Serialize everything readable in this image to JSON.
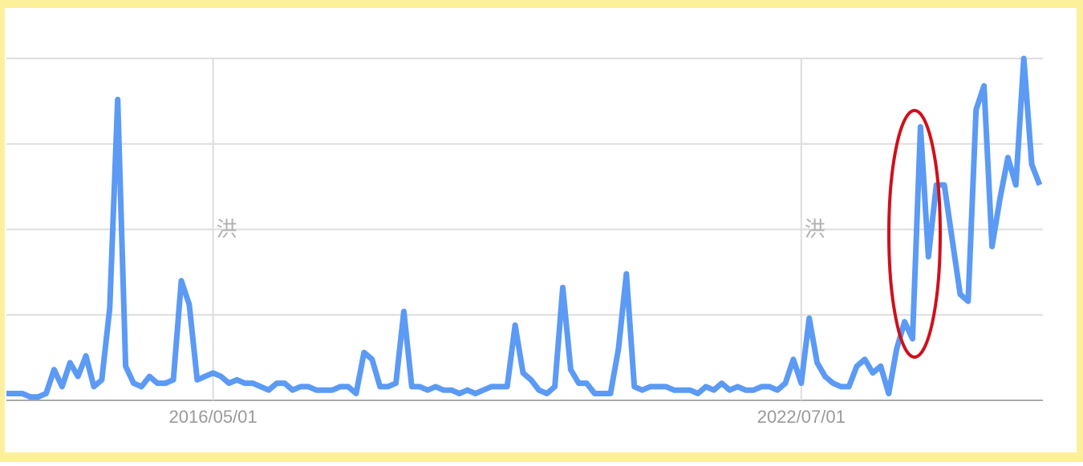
{
  "chart_data": {
    "type": "line",
    "x": [
      "2014/03/01",
      "2014/04/01",
      "2014/05/01",
      "2014/06/01",
      "2014/07/01",
      "2014/08/01",
      "2014/09/01",
      "2014/10/01",
      "2014/11/01",
      "2014/12/01",
      "2015/01/01",
      "2015/02/01",
      "2015/03/01",
      "2015/04/01",
      "2015/05/01",
      "2015/06/01",
      "2015/07/01",
      "2015/08/01",
      "2015/09/01",
      "2015/10/01",
      "2015/11/01",
      "2015/12/01",
      "2016/01/01",
      "2016/02/01",
      "2016/03/01",
      "2016/04/01",
      "2016/05/01",
      "2016/06/01",
      "2016/07/01",
      "2016/08/01",
      "2016/09/01",
      "2016/10/01",
      "2016/11/01",
      "2016/12/01",
      "2017/01/01",
      "2017/02/01",
      "2017/03/01",
      "2017/04/01",
      "2017/05/01",
      "2017/06/01",
      "2017/07/01",
      "2017/08/01",
      "2017/09/01",
      "2017/10/01",
      "2017/11/01",
      "2017/12/01",
      "2018/01/01",
      "2018/02/01",
      "2018/03/01",
      "2018/04/01",
      "2018/05/01",
      "2018/06/01",
      "2018/07/01",
      "2018/08/01",
      "2018/09/01",
      "2018/10/01",
      "2018/11/01",
      "2018/12/01",
      "2019/01/01",
      "2019/02/01",
      "2019/03/01",
      "2019/04/01",
      "2019/05/01",
      "2019/06/01",
      "2019/07/01",
      "2019/08/01",
      "2019/09/01",
      "2019/10/01",
      "2019/11/01",
      "2019/12/01",
      "2020/01/01",
      "2020/02/01",
      "2020/03/01",
      "2020/04/01",
      "2020/05/01",
      "2020/06/01",
      "2020/07/01",
      "2020/08/01",
      "2020/09/01",
      "2020/10/01",
      "2020/11/01",
      "2020/12/01",
      "2021/01/01",
      "2021/02/01",
      "2021/03/01",
      "2021/04/01",
      "2021/05/01",
      "2021/06/01",
      "2021/07/01",
      "2021/08/01",
      "2021/09/01",
      "2021/10/01",
      "2021/11/01",
      "2021/12/01",
      "2022/01/01",
      "2022/02/01",
      "2022/03/01",
      "2022/04/01",
      "2022/05/01",
      "2022/06/01",
      "2022/07/01",
      "2022/08/01",
      "2022/09/01",
      "2022/10/01",
      "2022/11/01",
      "2022/12/01",
      "2023/01/01",
      "2023/02/01",
      "2023/03/01",
      "2023/04/01",
      "2023/05/01",
      "2023/06/01",
      "2023/07/01",
      "2023/08/01",
      "2023/09/01",
      "2023/10/01",
      "2023/11/01",
      "2023/12/01",
      "2024/01/01",
      "2024/02/01",
      "2024/03/01",
      "2024/04/01",
      "2024/05/01",
      "2024/06/01",
      "2024/07/01",
      "2024/08/01",
      "2024/09/01",
      "2024/10/01",
      "2024/11/01",
      "2024/12/01",
      "2025/01/01"
    ],
    "series": [
      {
        "color": "#5b9af5",
        "values": [
          2,
          2,
          2,
          1,
          1,
          2,
          9,
          4,
          11,
          7,
          13,
          4,
          6,
          27,
          88,
          10,
          5,
          4,
          7,
          5,
          5,
          6,
          35,
          28,
          6,
          7,
          8,
          7,
          5,
          6,
          5,
          5,
          4,
          3,
          5,
          5,
          3,
          4,
          4,
          3,
          3,
          3,
          4,
          4,
          2,
          14,
          12,
          4,
          4,
          5,
          26,
          4,
          4,
          3,
          4,
          3,
          3,
          2,
          3,
          2,
          3,
          4,
          4,
          4,
          22,
          8,
          6,
          3,
          2,
          4,
          33,
          9,
          5,
          5,
          2,
          2,
          2,
          15,
          37,
          4,
          3,
          4,
          4,
          4,
          3,
          3,
          3,
          2,
          4,
          3,
          5,
          3,
          4,
          3,
          3,
          4,
          4,
          3,
          5,
          12,
          5,
          24,
          11,
          7,
          5,
          4,
          4,
          10,
          12,
          8,
          10,
          2,
          15,
          23,
          18,
          80,
          42,
          63,
          63,
          47,
          31,
          29,
          85,
          92,
          45,
          59,
          71,
          63,
          100,
          69,
          63
        ]
      }
    ],
    "xlim": [
      "2014/03/01",
      "2025/01/01"
    ],
    "xticks": [
      "2016/05/01",
      "2022/07/01"
    ],
    "ylim": [
      0,
      100
    ],
    "yticks": [
      0,
      25,
      50,
      75,
      100
    ],
    "grid": true,
    "annotations": [
      {
        "x": "2016/05/01",
        "text": "洪"
      },
      {
        "x": "2022/07/01",
        "text": "洪"
      }
    ]
  }
}
